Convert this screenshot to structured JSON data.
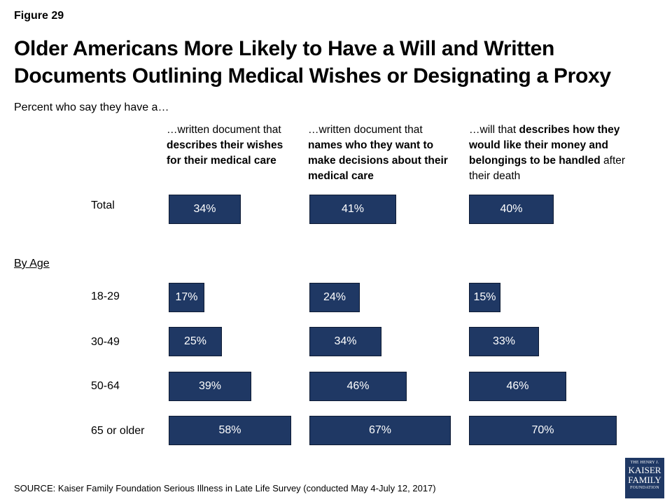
{
  "figure_label": "Figure 29",
  "title": "Older Americans More Likely to Have a Will and Written Documents Outlining Medical Wishes or Designating a Proxy",
  "subtitle": "Percent who say they have a…",
  "group_label": "By Age",
  "source": "SOURCE: Kaiser Family Foundation Serious Illness in Late Life Survey (conducted May 4-July 12, 2017)",
  "logo": {
    "line1": "THE HENRY J.",
    "line2": "KAISER",
    "line3": "FAMILY",
    "line4": "FOUNDATION"
  },
  "columns": [
    {
      "segments": [
        {
          "text": "…written document that ",
          "bold": false
        },
        {
          "text": "describes their wishes for their medical care",
          "bold": true
        }
      ]
    },
    {
      "segments": [
        {
          "text": "…written document that ",
          "bold": false
        },
        {
          "text": "names who they want to make decisions about their medical care",
          "bold": true
        }
      ]
    },
    {
      "segments": [
        {
          "text": "…will that ",
          "bold": false
        },
        {
          "text": "describes how they would like their money and belongings to be handled",
          "bold": true
        },
        {
          "text": " after their death",
          "bold": false
        }
      ]
    }
  ],
  "chart_data": {
    "type": "bar",
    "orientation": "horizontal",
    "subtitle": "Percent who say they have a…",
    "categories": [
      "Total",
      "18-29",
      "30-49",
      "50-64",
      "65 or older"
    ],
    "series": [
      {
        "values": [
          34,
          17,
          25,
          39,
          58
        ]
      },
      {
        "values": [
          41,
          24,
          34,
          46,
          67
        ]
      },
      {
        "values": [
          40,
          15,
          33,
          46,
          70
        ]
      }
    ],
    "data_labels": [
      [
        "34%",
        "17%",
        "25%",
        "39%",
        "58%"
      ],
      [
        "41%",
        "24%",
        "34%",
        "46%",
        "67%"
      ],
      [
        "40%",
        "15%",
        "33%",
        "46%",
        "70%"
      ]
    ],
    "bar_color": "#1f3864",
    "label_color": "#ffffff",
    "grid": false
  }
}
